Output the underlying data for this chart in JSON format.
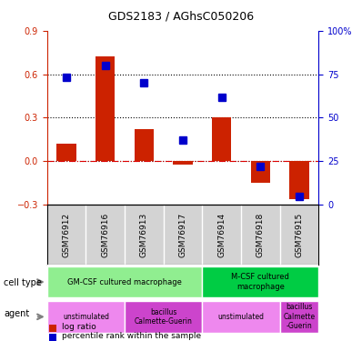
{
  "title": "GDS2183 / AGhsC050206",
  "samples": [
    "GSM76912",
    "GSM76916",
    "GSM76913",
    "GSM76917",
    "GSM76914",
    "GSM76918",
    "GSM76915"
  ],
  "log_ratio": [
    0.12,
    0.72,
    0.22,
    -0.02,
    0.3,
    -0.15,
    -0.26
  ],
  "percentile_rank": [
    0.73,
    0.8,
    0.7,
    0.37,
    0.62,
    0.22,
    0.05
  ],
  "bar_color": "#cc2200",
  "dot_color": "#0000cc",
  "ylim_left": [
    -0.3,
    0.9
  ],
  "ylim_right": [
    0,
    100
  ],
  "yticks_left": [
    -0.3,
    0.0,
    0.3,
    0.6,
    0.9
  ],
  "yticks_right": [
    0,
    25,
    50,
    75,
    100
  ],
  "hlines": [
    0.0,
    0.3,
    0.6
  ],
  "cell_types": [
    {
      "label": "GM-CSF cultured macrophage",
      "span": [
        0,
        4
      ],
      "color": "#90ee90"
    },
    {
      "label": "M-CSF cultured\nmacrophage",
      "span": [
        4,
        7
      ],
      "color": "#00cc44"
    }
  ],
  "agents": [
    {
      "label": "unstimulated",
      "span": [
        0,
        2
      ],
      "color": "#ee88ee"
    },
    {
      "label": "bacillus\nCalmette-Guerin",
      "span": [
        2,
        4
      ],
      "color": "#cc44cc"
    },
    {
      "label": "unstimulated",
      "span": [
        4,
        6
      ],
      "color": "#ee88ee"
    },
    {
      "label": "bacillus\nCalmette\n-Guerin",
      "span": [
        6,
        7
      ],
      "color": "#cc44cc"
    }
  ],
  "left_label": "cell type",
  "agent_label": "agent",
  "legend_log": "log ratio",
  "legend_pct": "percentile rank within the sample",
  "grid_color": "#000000",
  "zero_line_color": "#dd0000",
  "background_color": "#ffffff"
}
